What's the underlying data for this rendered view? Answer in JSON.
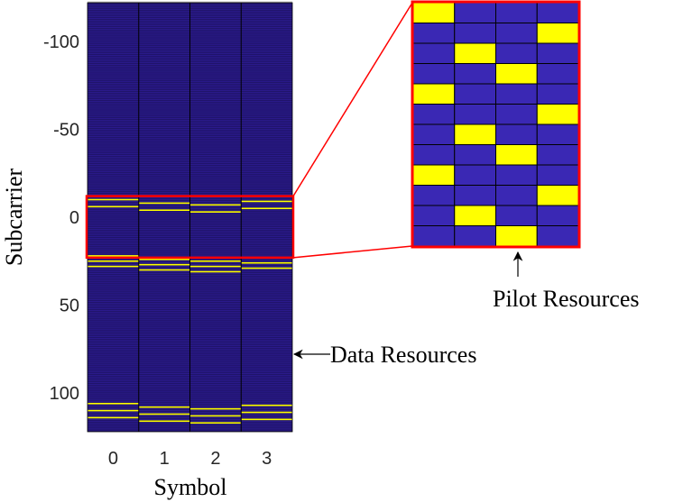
{
  "chart_data": {
    "type": "heatmap",
    "xlabel": "Symbol",
    "ylabel": "Subcarrier",
    "x_ticks": [
      0,
      1,
      2,
      3
    ],
    "y_ticks": [
      -100,
      -50,
      0,
      50,
      100
    ],
    "x_range": [
      -0.5,
      3.5
    ],
    "y_range": [
      -122,
      122
    ],
    "y_reversed": true,
    "colors": {
      "empty": "#2a1a8c",
      "row_line": "#000000",
      "occupied": "#ffff00",
      "zoom_cell": "#3a28b4",
      "highlight": "#ff0000"
    },
    "occupied": [
      {
        "symbol": 0,
        "subcarriers": [
          -10,
          -6,
          22,
          25,
          28,
          106,
          110,
          114
        ]
      },
      {
        "symbol": 1,
        "subcarriers": [
          -8,
          -4,
          24,
          27,
          30,
          108,
          112,
          116
        ]
      },
      {
        "symbol": 2,
        "subcarriers": [
          -7,
          -3,
          25,
          28,
          31,
          109,
          113,
          117
        ]
      },
      {
        "symbol": 3,
        "subcarriers": [
          -9,
          -5,
          23,
          26,
          29,
          107,
          111,
          115
        ]
      }
    ],
    "zoom": {
      "y_range": [
        -12,
        23
      ],
      "rows": 12,
      "pattern": [
        [
          1,
          0,
          0,
          0
        ],
        [
          0,
          0,
          0,
          1
        ],
        [
          0,
          1,
          0,
          0
        ],
        [
          0,
          0,
          1,
          0
        ],
        [
          1,
          0,
          0,
          0
        ],
        [
          0,
          0,
          0,
          1
        ],
        [
          0,
          1,
          0,
          0
        ],
        [
          0,
          0,
          1,
          0
        ],
        [
          1,
          0,
          0,
          0
        ],
        [
          0,
          0,
          0,
          1
        ],
        [
          0,
          1,
          0,
          0
        ],
        [
          0,
          0,
          1,
          0
        ]
      ]
    },
    "annotations": [
      {
        "text": "Pilot Resources",
        "target": "zoom-panel"
      },
      {
        "text": "Data Resources",
        "target": "main-grid"
      }
    ]
  }
}
